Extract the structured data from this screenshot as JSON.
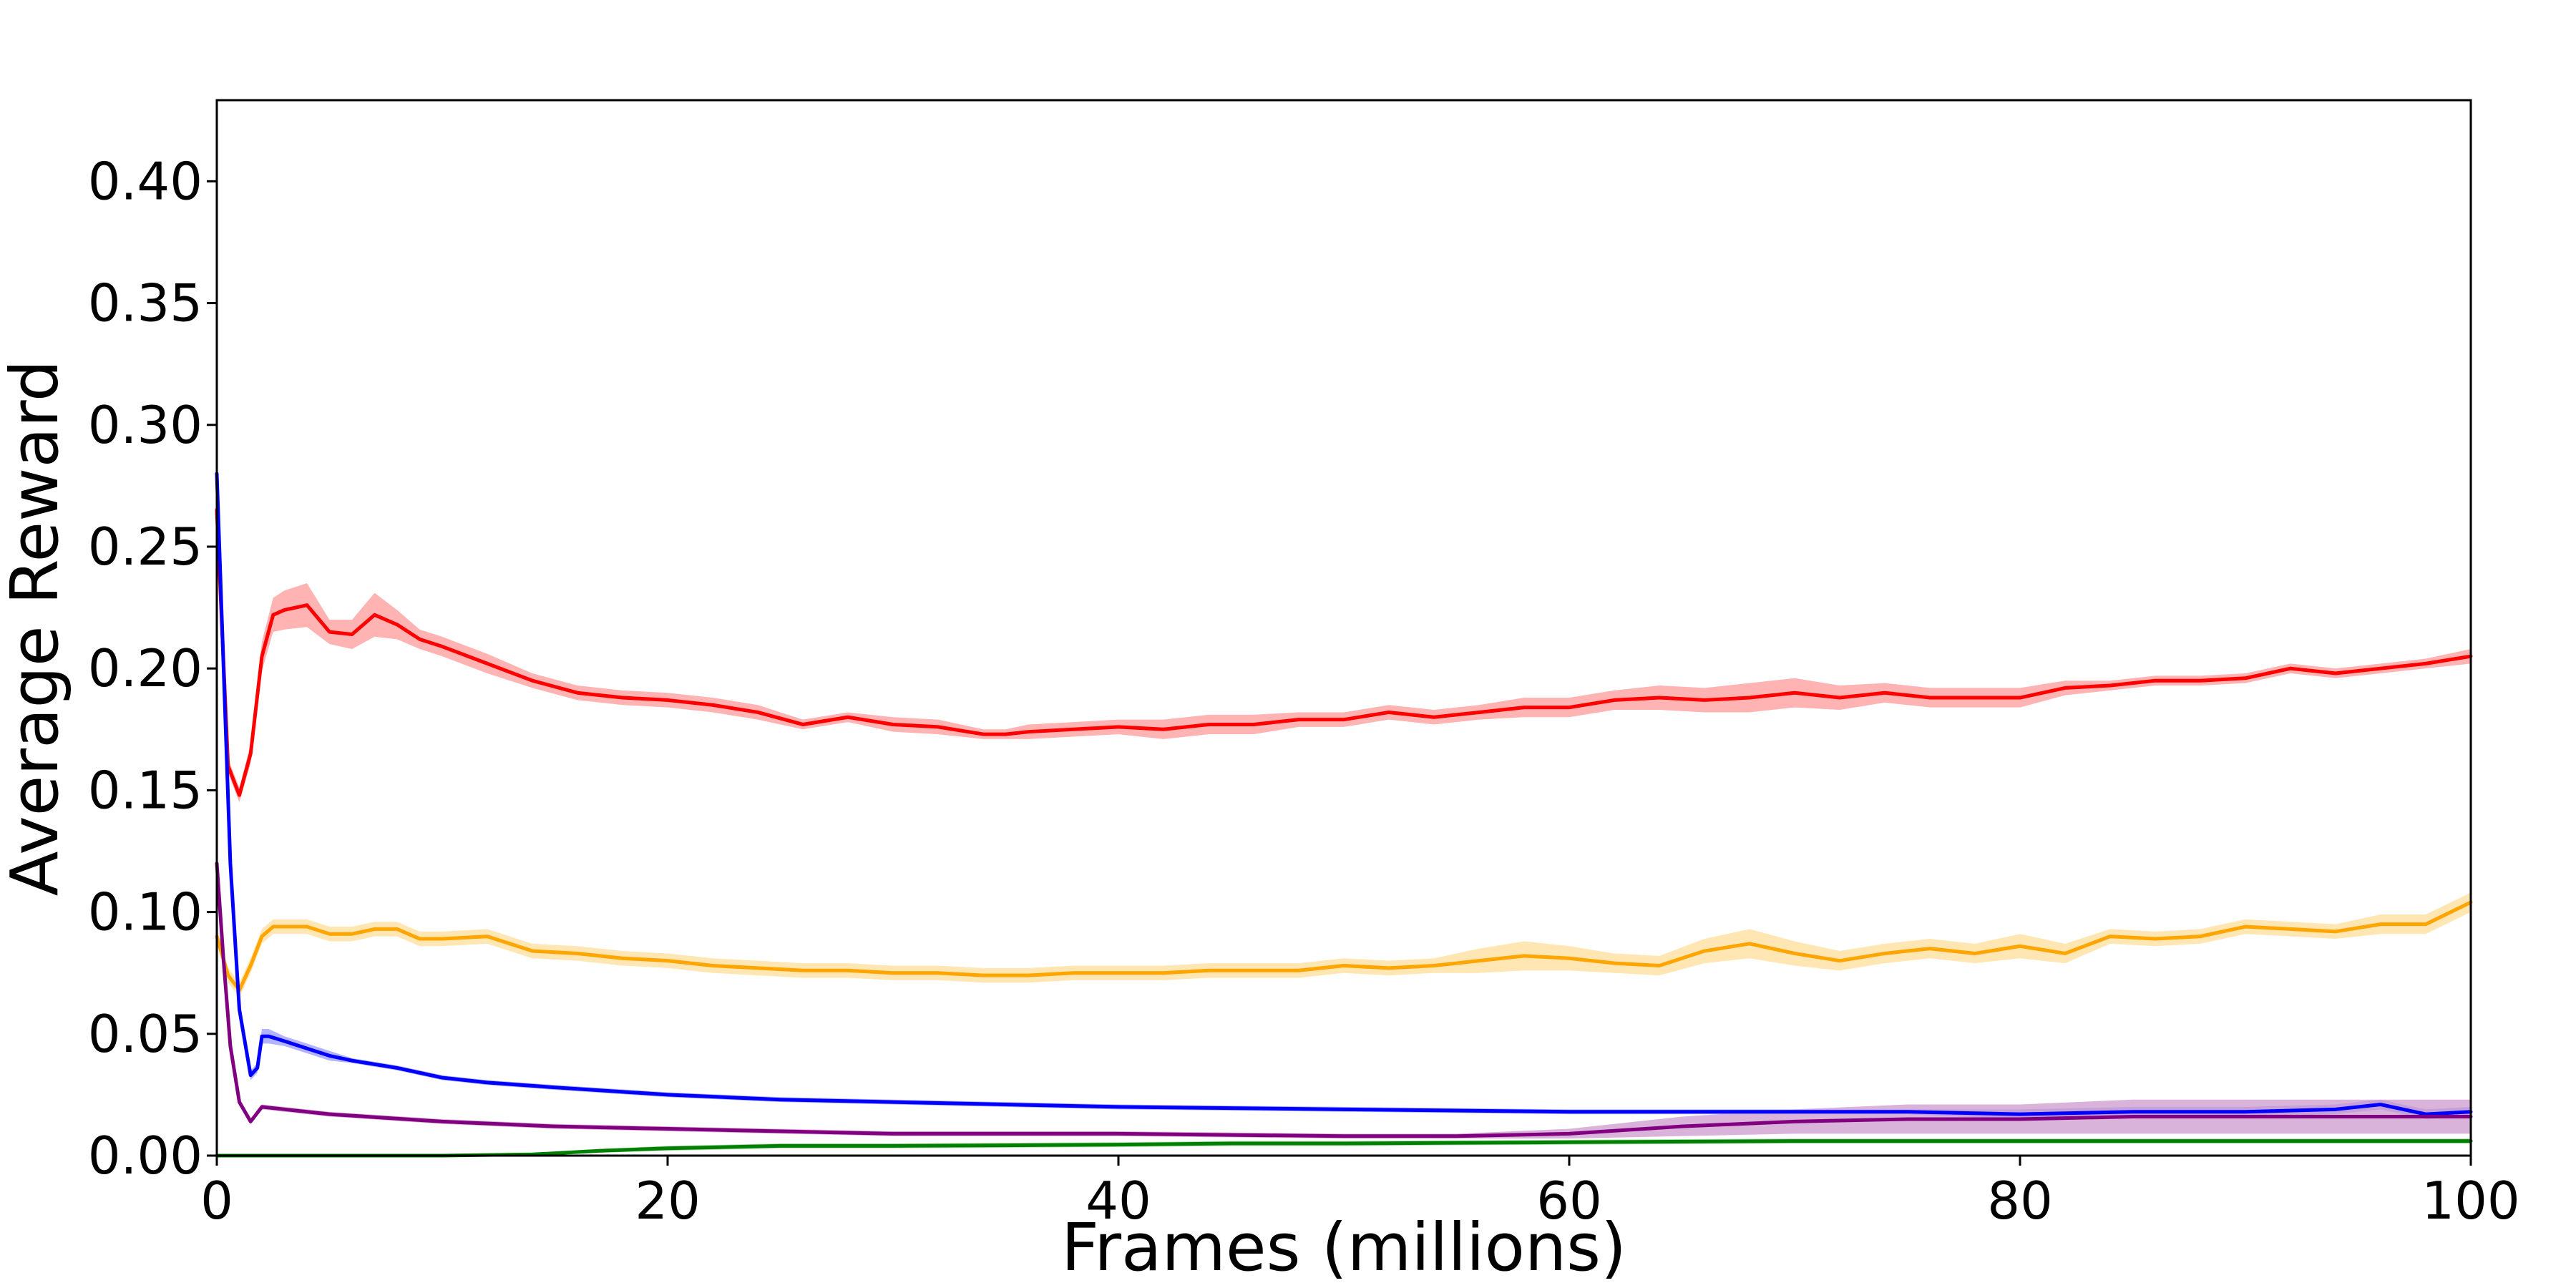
{
  "chart_data": {
    "type": "line",
    "title": "",
    "xlabel": "Frames (millions)",
    "ylabel": "Average Reward",
    "xlim": [
      0,
      100
    ],
    "ylim": [
      0,
      0.4333
    ],
    "xticks": [
      0,
      20,
      40,
      60,
      80,
      100
    ],
    "xtick_labels": [
      "0",
      "20",
      "40",
      "60",
      "80",
      "100"
    ],
    "yticks": [
      0.0,
      0.05,
      0.1,
      0.15,
      0.2,
      0.25,
      0.3,
      0.35,
      0.4
    ],
    "ytick_labels": [
      "0.00",
      "0.05",
      "0.10",
      "0.15",
      "0.20",
      "0.25",
      "0.30",
      "0.35",
      "0.40"
    ],
    "grid": false,
    "legend": "none",
    "series": [
      {
        "color": "#ff0000",
        "band_color": "#ff9a9a",
        "x": [
          0,
          0.5,
          1,
          1.5,
          2,
          2.5,
          3,
          4,
          5,
          6,
          7,
          8,
          9,
          10,
          12,
          14,
          16,
          18,
          20,
          22,
          24,
          26,
          28,
          30,
          32,
          34,
          35,
          36,
          38,
          40,
          42,
          44,
          46,
          48,
          50,
          52,
          54,
          56,
          58,
          60,
          62,
          64,
          66,
          68,
          70,
          72,
          74,
          76,
          78,
          80,
          82,
          84,
          86,
          88,
          90,
          92,
          94,
          96,
          98,
          100
        ],
        "y": [
          0.265,
          0.16,
          0.148,
          0.165,
          0.205,
          0.222,
          0.224,
          0.226,
          0.215,
          0.214,
          0.222,
          0.218,
          0.212,
          0.209,
          0.202,
          0.195,
          0.19,
          0.188,
          0.187,
          0.185,
          0.182,
          0.177,
          0.18,
          0.177,
          0.176,
          0.173,
          0.173,
          0.174,
          0.175,
          0.176,
          0.175,
          0.177,
          0.177,
          0.179,
          0.179,
          0.182,
          0.18,
          0.182,
          0.184,
          0.184,
          0.187,
          0.188,
          0.187,
          0.188,
          0.19,
          0.188,
          0.19,
          0.188,
          0.188,
          0.188,
          0.192,
          0.193,
          0.195,
          0.195,
          0.196,
          0.2,
          0.198,
          0.2,
          0.202,
          0.205
        ],
        "spread": [
          0.002,
          0.003,
          0.003,
          0.004,
          0.006,
          0.007,
          0.008,
          0.009,
          0.005,
          0.006,
          0.009,
          0.006,
          0.004,
          0.004,
          0.004,
          0.003,
          0.003,
          0.003,
          0.003,
          0.003,
          0.003,
          0.002,
          0.002,
          0.003,
          0.003,
          0.002,
          0.002,
          0.003,
          0.003,
          0.003,
          0.004,
          0.004,
          0.004,
          0.003,
          0.003,
          0.003,
          0.003,
          0.003,
          0.004,
          0.004,
          0.004,
          0.005,
          0.005,
          0.006,
          0.006,
          0.005,
          0.004,
          0.004,
          0.004,
          0.004,
          0.003,
          0.002,
          0.002,
          0.002,
          0.002,
          0.002,
          0.002,
          0.002,
          0.002,
          0.003
        ]
      },
      {
        "color": "#ffa500",
        "band_color": "#ffdd99",
        "x": [
          0,
          0.5,
          1,
          1.5,
          2,
          2.5,
          3,
          4,
          5,
          6,
          7,
          8,
          9,
          10,
          12,
          14,
          16,
          18,
          20,
          22,
          24,
          26,
          28,
          30,
          32,
          34,
          36,
          38,
          40,
          42,
          44,
          46,
          48,
          50,
          52,
          54,
          56,
          58,
          60,
          62,
          64,
          66,
          68,
          70,
          72,
          74,
          76,
          78,
          80,
          82,
          84,
          86,
          88,
          90,
          92,
          94,
          96,
          98,
          100
        ],
        "y": [
          0.09,
          0.074,
          0.068,
          0.078,
          0.09,
          0.094,
          0.094,
          0.094,
          0.091,
          0.091,
          0.093,
          0.093,
          0.089,
          0.089,
          0.09,
          0.084,
          0.083,
          0.081,
          0.08,
          0.078,
          0.077,
          0.076,
          0.076,
          0.075,
          0.075,
          0.074,
          0.074,
          0.075,
          0.075,
          0.075,
          0.076,
          0.076,
          0.076,
          0.078,
          0.077,
          0.078,
          0.08,
          0.082,
          0.081,
          0.079,
          0.078,
          0.084,
          0.087,
          0.083,
          0.08,
          0.083,
          0.085,
          0.083,
          0.086,
          0.083,
          0.09,
          0.089,
          0.09,
          0.094,
          0.093,
          0.092,
          0.095,
          0.095,
          0.104
        ],
        "spread": [
          0.003,
          0.003,
          0.003,
          0.003,
          0.003,
          0.003,
          0.003,
          0.003,
          0.003,
          0.003,
          0.003,
          0.003,
          0.003,
          0.003,
          0.003,
          0.003,
          0.003,
          0.003,
          0.003,
          0.003,
          0.003,
          0.003,
          0.003,
          0.003,
          0.003,
          0.003,
          0.003,
          0.003,
          0.003,
          0.003,
          0.003,
          0.003,
          0.003,
          0.003,
          0.003,
          0.003,
          0.005,
          0.006,
          0.005,
          0.004,
          0.004,
          0.005,
          0.006,
          0.005,
          0.004,
          0.004,
          0.004,
          0.004,
          0.005,
          0.004,
          0.003,
          0.003,
          0.003,
          0.003,
          0.003,
          0.003,
          0.004,
          0.004,
          0.004
        ]
      },
      {
        "color": "#0000ff",
        "band_color": "#9a9aff",
        "x": [
          0,
          0.3,
          0.6,
          1,
          1.5,
          1.8,
          2,
          2.3,
          3,
          4,
          5,
          6,
          8,
          10,
          12,
          15,
          20,
          25,
          30,
          40,
          50,
          60,
          65,
          70,
          75,
          80,
          85,
          90,
          94,
          96,
          98,
          100
        ],
        "y": [
          0.28,
          0.2,
          0.12,
          0.06,
          0.033,
          0.036,
          0.049,
          0.049,
          0.047,
          0.044,
          0.041,
          0.039,
          0.036,
          0.032,
          0.03,
          0.028,
          0.025,
          0.023,
          0.022,
          0.02,
          0.019,
          0.018,
          0.018,
          0.018,
          0.018,
          0.017,
          0.018,
          0.018,
          0.019,
          0.021,
          0.017,
          0.018
        ],
        "spread": [
          0.001,
          0.001,
          0.001,
          0.001,
          0.002,
          0.002,
          0.003,
          0.003,
          0.002,
          0.002,
          0.002,
          0.001,
          0.001,
          0.001,
          0.001,
          0.001,
          0.001,
          0.001,
          0.001,
          0.001,
          0.001,
          0.001,
          0.001,
          0.001,
          0.001,
          0.002,
          0.002,
          0.002,
          0.002,
          0.002,
          0.002,
          0.002
        ]
      },
      {
        "color": "#800080",
        "band_color": "#cc99cc",
        "x": [
          0,
          0.3,
          0.6,
          1,
          1.5,
          2,
          3,
          5,
          10,
          15,
          20,
          30,
          40,
          50,
          55,
          60,
          65,
          70,
          75,
          80,
          85,
          90,
          95,
          100
        ],
        "y": [
          0.12,
          0.08,
          0.045,
          0.022,
          0.014,
          0.02,
          0.019,
          0.017,
          0.014,
          0.012,
          0.011,
          0.009,
          0.009,
          0.008,
          0.008,
          0.009,
          0.012,
          0.014,
          0.015,
          0.015,
          0.016,
          0.016,
          0.016,
          0.016
        ],
        "spread": [
          0.001,
          0.001,
          0.001,
          0.001,
          0.001,
          0.001,
          0.001,
          0.001,
          0.001,
          0.001,
          0.001,
          0.001,
          0.001,
          0.001,
          0.001,
          0.002,
          0.004,
          0.005,
          0.006,
          0.006,
          0.007,
          0.007,
          0.007,
          0.007
        ]
      },
      {
        "color": "#008000",
        "band_color": "#99cc99",
        "x": [
          0,
          10,
          14,
          17,
          20,
          25,
          30,
          40,
          45,
          50,
          60,
          70,
          80,
          90,
          100
        ],
        "y": [
          0.0,
          0.0,
          0.0005,
          0.002,
          0.003,
          0.004,
          0.004,
          0.0045,
          0.005,
          0.005,
          0.0055,
          0.006,
          0.006,
          0.006,
          0.006
        ],
        "spread": [
          0.0,
          0.0,
          0.0005,
          0.0008,
          0.001,
          0.001,
          0.001,
          0.001,
          0.001,
          0.001,
          0.001,
          0.001,
          0.001,
          0.001,
          0.001
        ]
      }
    ]
  }
}
